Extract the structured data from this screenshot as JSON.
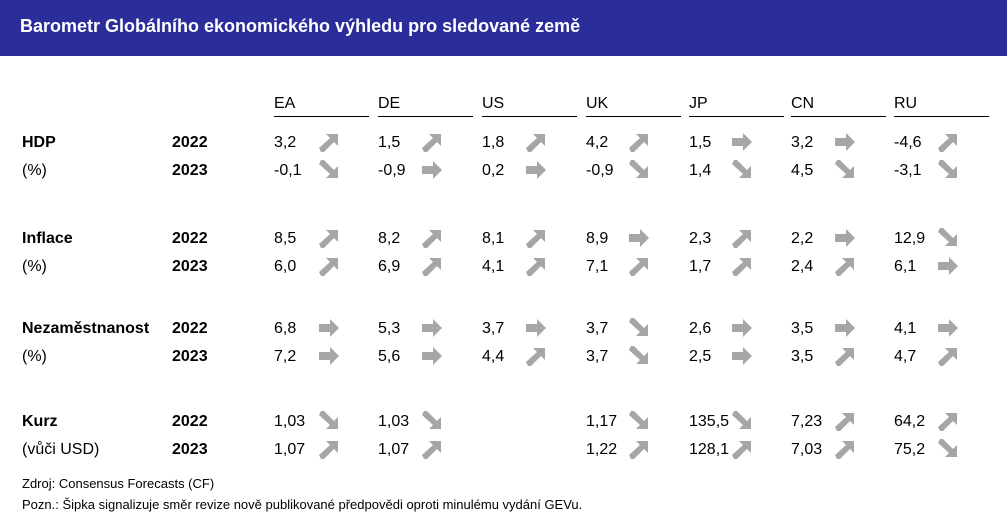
{
  "title": "Barometr Globálního ekonomického výhledu pro sledované země",
  "colors": {
    "title_bg": "#2b2d9b",
    "title_text": "#ffffff",
    "arrow": "#a6a6a6"
  },
  "columns": [
    "EA",
    "DE",
    "US",
    "UK",
    "JP",
    "CN",
    "RU"
  ],
  "sections": [
    {
      "label": "HDP",
      "sublabel": "(%)",
      "rows": [
        {
          "year": "2022",
          "cells": [
            {
              "value": "3,2",
              "arrow": "up-right-icon"
            },
            {
              "value": "1,5",
              "arrow": "up-right-icon"
            },
            {
              "value": "1,8",
              "arrow": "up-right-icon"
            },
            {
              "value": "4,2",
              "arrow": "up-right-icon"
            },
            {
              "value": "1,5",
              "arrow": "right-icon"
            },
            {
              "value": "3,2",
              "arrow": "right-icon"
            },
            {
              "value": "-4,6",
              "arrow": "up-right-icon"
            }
          ]
        },
        {
          "year": "2023",
          "cells": [
            {
              "value": "-0,1",
              "arrow": "down-right-icon"
            },
            {
              "value": "-0,9",
              "arrow": "right-icon"
            },
            {
              "value": "0,2",
              "arrow": "right-icon"
            },
            {
              "value": "-0,9",
              "arrow": "down-right-icon"
            },
            {
              "value": "1,4",
              "arrow": "down-right-icon"
            },
            {
              "value": "4,5",
              "arrow": "down-right-icon"
            },
            {
              "value": "-3,1",
              "arrow": "down-right-icon"
            }
          ]
        }
      ]
    },
    {
      "label": "Inflace",
      "sublabel": "(%)",
      "rows": [
        {
          "year": "2022",
          "cells": [
            {
              "value": "8,5",
              "arrow": "up-right-icon"
            },
            {
              "value": "8,2",
              "arrow": "up-right-icon"
            },
            {
              "value": "8,1",
              "arrow": "up-right-icon"
            },
            {
              "value": "8,9",
              "arrow": "right-icon"
            },
            {
              "value": "2,3",
              "arrow": "up-right-icon"
            },
            {
              "value": "2,2",
              "arrow": "right-icon"
            },
            {
              "value": "12,9",
              "arrow": "down-right-icon"
            }
          ]
        },
        {
          "year": "2023",
          "cells": [
            {
              "value": "6,0",
              "arrow": "up-right-icon"
            },
            {
              "value": "6,9",
              "arrow": "up-right-icon"
            },
            {
              "value": "4,1",
              "arrow": "up-right-icon"
            },
            {
              "value": "7,1",
              "arrow": "up-right-icon"
            },
            {
              "value": "1,7",
              "arrow": "up-right-icon"
            },
            {
              "value": "2,4",
              "arrow": "up-right-icon"
            },
            {
              "value": "6,1",
              "arrow": "right-icon"
            }
          ]
        }
      ]
    },
    {
      "label": "Nezaměstnanost",
      "sublabel": "(%)",
      "rows": [
        {
          "year": "2022",
          "cells": [
            {
              "value": "6,8",
              "arrow": "right-icon"
            },
            {
              "value": "5,3",
              "arrow": "right-icon"
            },
            {
              "value": "3,7",
              "arrow": "right-icon"
            },
            {
              "value": "3,7",
              "arrow": "down-right-icon"
            },
            {
              "value": "2,6",
              "arrow": "right-icon"
            },
            {
              "value": "3,5",
              "arrow": "right-icon"
            },
            {
              "value": "4,1",
              "arrow": "right-icon"
            }
          ]
        },
        {
          "year": "2023",
          "cells": [
            {
              "value": "7,2",
              "arrow": "right-icon"
            },
            {
              "value": "5,6",
              "arrow": "right-icon"
            },
            {
              "value": "4,4",
              "arrow": "up-right-icon"
            },
            {
              "value": "3,7",
              "arrow": "down-right-icon"
            },
            {
              "value": "2,5",
              "arrow": "right-icon"
            },
            {
              "value": "3,5",
              "arrow": "up-right-icon"
            },
            {
              "value": "4,7",
              "arrow": "up-right-icon"
            }
          ]
        }
      ]
    },
    {
      "label": "Kurz",
      "sublabel": "(vůči USD)",
      "rows": [
        {
          "year": "2022",
          "cells": [
            {
              "value": "1,03",
              "arrow": "down-right-icon"
            },
            {
              "value": "1,03",
              "arrow": "down-right-icon"
            },
            {
              "value": "",
              "arrow": ""
            },
            {
              "value": "1,17",
              "arrow": "down-right-icon"
            },
            {
              "value": "135,5",
              "arrow": "down-right-icon"
            },
            {
              "value": "7,23",
              "arrow": "up-right-icon"
            },
            {
              "value": "64,2",
              "arrow": "up-right-icon"
            }
          ]
        },
        {
          "year": "2023",
          "cells": [
            {
              "value": "1,07",
              "arrow": "up-right-icon"
            },
            {
              "value": "1,07",
              "arrow": "up-right-icon"
            },
            {
              "value": "",
              "arrow": ""
            },
            {
              "value": "1,22",
              "arrow": "up-right-icon"
            },
            {
              "value": "128,1",
              "arrow": "up-right-icon"
            },
            {
              "value": "7,03",
              "arrow": "up-right-icon"
            },
            {
              "value": "75,2",
              "arrow": "down-right-icon"
            }
          ]
        }
      ]
    }
  ],
  "footnotes": {
    "source": "Zdroj: Consensus Forecasts (CF)",
    "note": "Pozn.: Šipka signalizuje směr revize nově publikované předpovědi oproti minulému vydání GEVu."
  }
}
